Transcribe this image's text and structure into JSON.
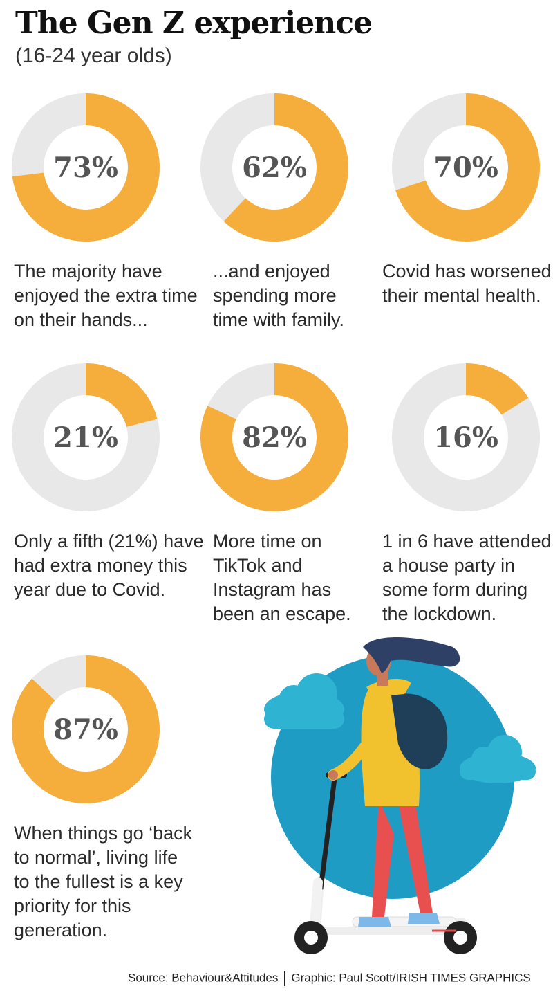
{
  "header": {
    "title": "The Gen Z experience",
    "subtitle": "(16-24 year olds)"
  },
  "colors": {
    "accent": "#F5AE3C",
    "track": "#E8E8E8",
    "circle": "#1E9CC4"
  },
  "chart_data": [
    {
      "type": "pie",
      "value": 73,
      "label": "73%",
      "caption": [
        "The majority have",
        "enjoyed the extra time",
        "on their hands..."
      ]
    },
    {
      "type": "pie",
      "value": 62,
      "label": "62%",
      "caption": [
        "...and enjoyed",
        "spending more",
        "time with family."
      ]
    },
    {
      "type": "pie",
      "value": 70,
      "label": "70%",
      "caption": [
        "Covid has worsened",
        "their mental health."
      ]
    },
    {
      "type": "pie",
      "value": 21,
      "label": "21%",
      "caption": [
        "Only a fifth (21%) have",
        "had extra money this",
        "year due to Covid."
      ]
    },
    {
      "type": "pie",
      "value": 82,
      "label": "82%",
      "caption": [
        "More time on",
        "TikTok and",
        "Instagram has",
        "been an escape."
      ]
    },
    {
      "type": "pie",
      "value": 16,
      "label": "16%",
      "caption": [
        "1 in 6 have attended",
        "a house party in",
        "some form during",
        "the lockdown."
      ]
    },
    {
      "type": "pie",
      "value": 87,
      "label": "87%",
      "caption": [
        "When things go ‘back",
        "to normal’, living life",
        "to the fullest is a key",
        "priority for this",
        "generation."
      ]
    }
  ],
  "footer": {
    "source": "Source: Behaviour&Attitudes",
    "credit": "Graphic: Paul Scott/IRISH TIMES GRAPHICS"
  }
}
